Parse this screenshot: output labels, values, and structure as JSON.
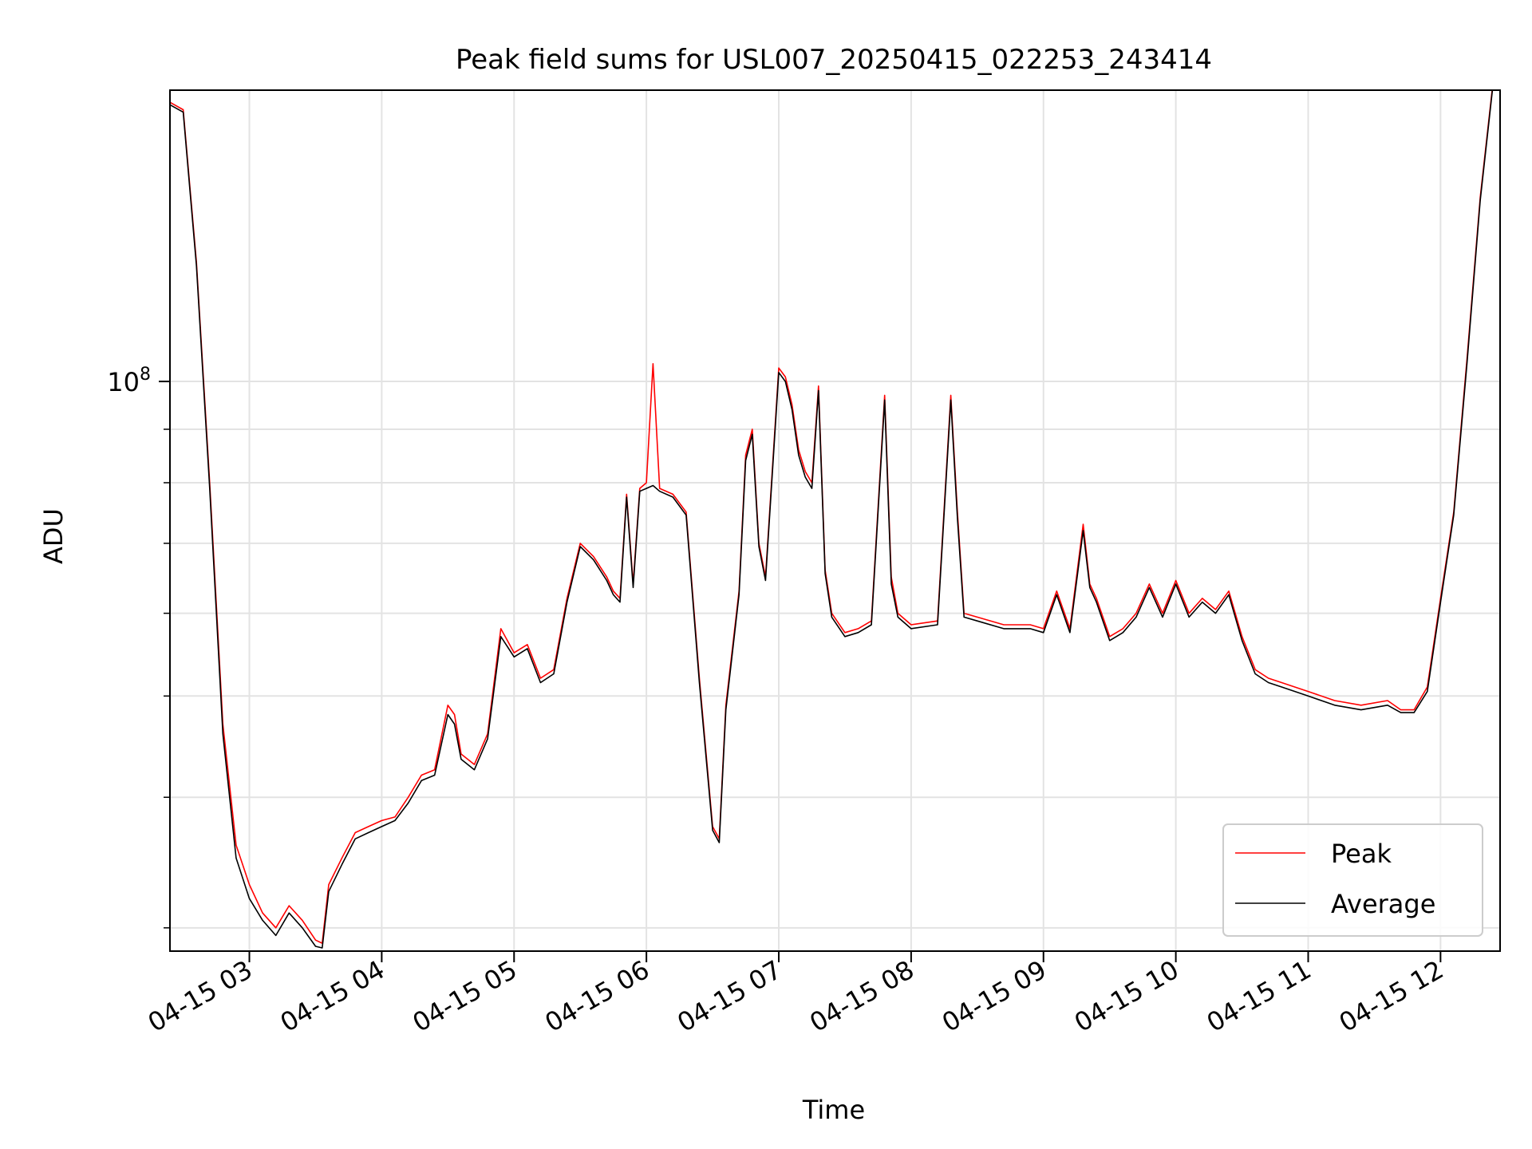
{
  "chart_data": {
    "type": "line",
    "title": "Peak field sums for USL007_20250415_022253_243414",
    "xlabel": "Time",
    "ylabel": "ADU",
    "y_scale": "log",
    "ylim": [
      28500000,
      190000000
    ],
    "x_range_hours": [
      2.4,
      12.45
    ],
    "x_ticks": [
      {
        "hour": 3,
        "label": "04-15 03"
      },
      {
        "hour": 4,
        "label": "04-15 04"
      },
      {
        "hour": 5,
        "label": "04-15 05"
      },
      {
        "hour": 6,
        "label": "04-15 06"
      },
      {
        "hour": 7,
        "label": "04-15 07"
      },
      {
        "hour": 8,
        "label": "04-15 08"
      },
      {
        "hour": 9,
        "label": "04-15 09"
      },
      {
        "hour": 10,
        "label": "04-15 10"
      },
      {
        "hour": 11,
        "label": "04-15 11"
      },
      {
        "hour": 12,
        "label": "04-15 12"
      }
    ],
    "y_major_ticks": [
      {
        "value": 100000000,
        "label": "10",
        "exp": "8"
      }
    ],
    "y_minor_ticks": [
      30000000,
      40000000,
      50000000,
      60000000,
      70000000,
      80000000,
      90000000,
      200000000
    ],
    "grid": true,
    "legend": {
      "position": "lower-right"
    },
    "series": [
      {
        "name": "Peak",
        "color": "#ff0000",
        "x": [
          2.4,
          2.5,
          2.6,
          2.7,
          2.8,
          2.9,
          3.0,
          3.1,
          3.2,
          3.3,
          3.4,
          3.5,
          3.55,
          3.6,
          3.7,
          3.8,
          3.9,
          4.0,
          4.1,
          4.2,
          4.3,
          4.4,
          4.5,
          4.55,
          4.6,
          4.7,
          4.8,
          4.9,
          5.0,
          5.1,
          5.2,
          5.3,
          5.4,
          5.5,
          5.6,
          5.7,
          5.75,
          5.8,
          5.85,
          5.9,
          5.95,
          6.0,
          6.05,
          6.1,
          6.2,
          6.3,
          6.4,
          6.5,
          6.55,
          6.6,
          6.7,
          6.75,
          6.8,
          6.85,
          6.9,
          7.0,
          7.05,
          7.1,
          7.15,
          7.2,
          7.25,
          7.3,
          7.35,
          7.4,
          7.5,
          7.6,
          7.7,
          7.8,
          7.85,
          7.9,
          8.0,
          8.2,
          8.3,
          8.35,
          8.4,
          8.5,
          8.7,
          8.9,
          9.0,
          9.1,
          9.2,
          9.3,
          9.35,
          9.4,
          9.5,
          9.6,
          9.7,
          9.8,
          9.9,
          10.0,
          10.1,
          10.2,
          10.3,
          10.4,
          10.5,
          10.6,
          10.7,
          10.8,
          11.0,
          11.2,
          11.4,
          11.6,
          11.7,
          11.8,
          11.9,
          12.0,
          12.1,
          12.2,
          12.3,
          12.4
        ],
        "values": [
          185000000,
          182000000,
          130000000,
          80000000,
          47000000,
          36000000,
          33000000,
          31000000,
          30000000,
          31500000,
          30500000,
          29200000,
          29000000,
          33000000,
          35000000,
          37000000,
          37500000,
          38000000,
          38300000,
          40000000,
          42000000,
          42500000,
          49000000,
          48000000,
          44000000,
          43000000,
          46000000,
          58000000,
          55000000,
          56000000,
          52000000,
          53000000,
          62000000,
          70000000,
          68000000,
          65000000,
          63000000,
          62000000,
          78000000,
          64000000,
          79000000,
          80000000,
          104000000,
          79000000,
          78000000,
          75000000,
          52000000,
          37500000,
          36500000,
          49000000,
          63000000,
          85000000,
          90000000,
          70000000,
          65000000,
          103000000,
          101000000,
          95000000,
          86000000,
          82000000,
          80000000,
          99000000,
          66000000,
          60000000,
          57500000,
          58000000,
          59000000,
          97000000,
          65000000,
          60000000,
          58500000,
          59000000,
          97000000,
          75000000,
          60000000,
          59500000,
          58500000,
          58500000,
          58000000,
          63000000,
          58000000,
          73000000,
          64000000,
          62000000,
          57000000,
          58000000,
          60000000,
          64000000,
          60000000,
          64500000,
          60000000,
          62000000,
          60500000,
          63000000,
          57000000,
          53000000,
          52000000,
          51500000,
          50500000,
          49500000,
          49000000,
          49500000,
          48500000,
          48500000,
          51000000,
          62000000,
          75000000,
          105000000,
          150000000,
          195000000
        ]
      },
      {
        "name": "Average",
        "color": "#000000",
        "x": [
          2.4,
          2.5,
          2.6,
          2.7,
          2.8,
          2.9,
          3.0,
          3.1,
          3.2,
          3.3,
          3.4,
          3.5,
          3.55,
          3.6,
          3.7,
          3.8,
          3.9,
          4.0,
          4.1,
          4.2,
          4.3,
          4.4,
          4.5,
          4.55,
          4.6,
          4.7,
          4.8,
          4.9,
          5.0,
          5.1,
          5.2,
          5.3,
          5.4,
          5.5,
          5.6,
          5.7,
          5.75,
          5.8,
          5.85,
          5.9,
          5.95,
          6.0,
          6.05,
          6.1,
          6.2,
          6.3,
          6.4,
          6.5,
          6.55,
          6.6,
          6.7,
          6.75,
          6.8,
          6.85,
          6.9,
          7.0,
          7.05,
          7.1,
          7.15,
          7.2,
          7.25,
          7.3,
          7.35,
          7.4,
          7.5,
          7.6,
          7.7,
          7.8,
          7.85,
          7.9,
          8.0,
          8.2,
          8.3,
          8.35,
          8.4,
          8.5,
          8.7,
          8.9,
          9.0,
          9.1,
          9.2,
          9.3,
          9.35,
          9.4,
          9.5,
          9.6,
          9.7,
          9.8,
          9.9,
          10.0,
          10.1,
          10.2,
          10.3,
          10.4,
          10.5,
          10.6,
          10.7,
          10.8,
          11.0,
          11.2,
          11.4,
          11.6,
          11.7,
          11.8,
          11.9,
          12.0,
          12.1,
          12.2,
          12.3,
          12.4
        ],
        "values": [
          184000000,
          181000000,
          129000000,
          79000000,
          46000000,
          35000000,
          32000000,
          30500000,
          29500000,
          31000000,
          30000000,
          28800000,
          28700000,
          32500000,
          34500000,
          36500000,
          37000000,
          37500000,
          38000000,
          39500000,
          41500000,
          42000000,
          48000000,
          47000000,
          43500000,
          42500000,
          45500000,
          57000000,
          54500000,
          55500000,
          51500000,
          52500000,
          61500000,
          69500000,
          67500000,
          64500000,
          62500000,
          61500000,
          77500000,
          63500000,
          78500000,
          79000000,
          79500000,
          78500000,
          77500000,
          74500000,
          51500000,
          37200000,
          36200000,
          48500000,
          62500000,
          84000000,
          89000000,
          69500000,
          64500000,
          102000000,
          100000000,
          94000000,
          85000000,
          81000000,
          79000000,
          98000000,
          65500000,
          59500000,
          57000000,
          57500000,
          58500000,
          96000000,
          64000000,
          59500000,
          58000000,
          58500000,
          96000000,
          74000000,
          59500000,
          59000000,
          58000000,
          58000000,
          57500000,
          62500000,
          57500000,
          72000000,
          63500000,
          61500000,
          56500000,
          57500000,
          59500000,
          63500000,
          59500000,
          64000000,
          59500000,
          61500000,
          60000000,
          62500000,
          56500000,
          52500000,
          51500000,
          51000000,
          50000000,
          49000000,
          48500000,
          49000000,
          48200000,
          48200000,
          50500000,
          61500000,
          74500000,
          104000000,
          149000000,
          194000000
        ]
      }
    ]
  }
}
